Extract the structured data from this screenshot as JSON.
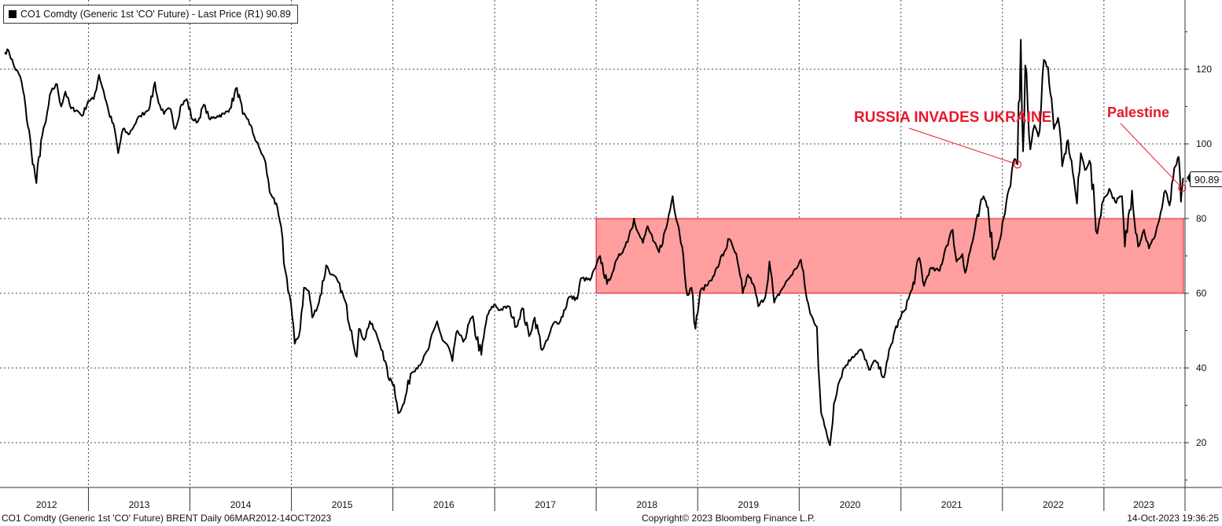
{
  "legend": {
    "text": "CO1 Comdty (Generic 1st 'CO' Future) - Last Price (R1) 90.89"
  },
  "last_price_badge": "90.89",
  "footer": {
    "left": "CO1 Comdty (Generic 1st 'CO' Future) BRENT  Daily 06MAR2012-14OCT2023",
    "center": "Copyright© 2023 Bloomberg Finance L.P.",
    "right": "14-Oct-2023 19:36:25"
  },
  "annotations": [
    {
      "text": "RUSSIA INVADES UKRAINE",
      "date": "2022-02-24",
      "value": 94.5
    },
    {
      "text": "Palestine",
      "date": "2023-10-09",
      "value": 88.2
    }
  ],
  "colors": {
    "line": "#000000",
    "band_fill": "#ff9e9e",
    "band_stroke": "#e01414",
    "annotation": "#e8182a",
    "grid": "#444444"
  },
  "chart_data": {
    "type": "line",
    "title": "",
    "xlabel": "",
    "ylabel": "",
    "x_range": [
      "2012-03-06",
      "2023-10-14"
    ],
    "xticks": [
      "2012",
      "2013",
      "2014",
      "2015",
      "2016",
      "2017",
      "2018",
      "2019",
      "2020",
      "2021",
      "2022",
      "2023"
    ],
    "yticks": [
      20,
      40,
      60,
      80,
      100,
      120
    ],
    "ylim": [
      10,
      138
    ],
    "grid": true,
    "y_axis_side": "right",
    "legend_position": "top-left",
    "highlight_band": {
      "x_start": "2018-01-01",
      "x_end": "2023-10-14",
      "y_low": 60,
      "y_high": 80
    },
    "series": [
      {
        "name": "CO1 Comdty (Generic 1st 'CO' Future) - Last Price",
        "last_value": 90.89,
        "points": [
          [
            "2012-03-06",
            124.5
          ],
          [
            "2012-03-20",
            125.0
          ],
          [
            "2012-04-10",
            120.5
          ],
          [
            "2012-05-01",
            118.0
          ],
          [
            "2012-05-20",
            110.0
          ],
          [
            "2012-06-10",
            98.0
          ],
          [
            "2012-06-28",
            89.5
          ],
          [
            "2012-07-15",
            101.0
          ],
          [
            "2012-08-01",
            106.0
          ],
          [
            "2012-08-20",
            114.0
          ],
          [
            "2012-09-10",
            116.0
          ],
          [
            "2012-09-25",
            110.0
          ],
          [
            "2012-10-10",
            114.0
          ],
          [
            "2012-10-30",
            109.5
          ],
          [
            "2012-11-20",
            109.0
          ],
          [
            "2012-12-10",
            107.5
          ],
          [
            "2012-12-31",
            111.5
          ],
          [
            "2013-01-20",
            112.0
          ],
          [
            "2013-02-08",
            118.5
          ],
          [
            "2013-02-25",
            114.0
          ],
          [
            "2013-03-15",
            108.5
          ],
          [
            "2013-04-05",
            104.0
          ],
          [
            "2013-04-18",
            97.5
          ],
          [
            "2013-05-05",
            104.0
          ],
          [
            "2013-05-25",
            102.5
          ],
          [
            "2013-06-15",
            105.0
          ],
          [
            "2013-07-05",
            107.5
          ],
          [
            "2013-07-25",
            108.5
          ],
          [
            "2013-08-10",
            110.0
          ],
          [
            "2013-08-28",
            116.5
          ],
          [
            "2013-09-10",
            111.0
          ],
          [
            "2013-09-30",
            108.0
          ],
          [
            "2013-10-20",
            109.5
          ],
          [
            "2013-11-10",
            104.0
          ],
          [
            "2013-11-28",
            110.0
          ],
          [
            "2013-12-20",
            112.0
          ],
          [
            "2014-01-10",
            106.5
          ],
          [
            "2014-01-30",
            106.0
          ],
          [
            "2014-02-20",
            110.5
          ],
          [
            "2014-03-15",
            106.5
          ],
          [
            "2014-04-10",
            107.5
          ],
          [
            "2014-05-05",
            108.0
          ],
          [
            "2014-05-25",
            109.5
          ],
          [
            "2014-06-19",
            115.0
          ],
          [
            "2014-07-10",
            108.0
          ],
          [
            "2014-07-30",
            106.5
          ],
          [
            "2014-08-20",
            102.0
          ],
          [
            "2014-09-10",
            98.5
          ],
          [
            "2014-09-30",
            95.0
          ],
          [
            "2014-10-15",
            87.0
          ],
          [
            "2014-10-30",
            85.5
          ],
          [
            "2014-11-20",
            79.5
          ],
          [
            "2014-12-10",
            66.0
          ],
          [
            "2014-12-30",
            57.5
          ],
          [
            "2015-01-13",
            46.5
          ],
          [
            "2015-01-28",
            48.5
          ],
          [
            "2015-02-15",
            61.5
          ],
          [
            "2015-03-05",
            60.5
          ],
          [
            "2015-03-17",
            53.5
          ],
          [
            "2015-04-10",
            57.5
          ],
          [
            "2015-05-06",
            67.5
          ],
          [
            "2015-05-25",
            65.0
          ],
          [
            "2015-06-15",
            63.5
          ],
          [
            "2015-07-10",
            58.5
          ],
          [
            "2015-08-05",
            50.0
          ],
          [
            "2015-08-24",
            43.0
          ],
          [
            "2015-09-01",
            50.5
          ],
          [
            "2015-09-20",
            47.5
          ],
          [
            "2015-10-10",
            52.5
          ],
          [
            "2015-11-05",
            48.5
          ],
          [
            "2015-11-25",
            44.5
          ],
          [
            "2015-12-15",
            37.5
          ],
          [
            "2016-01-05",
            35.5
          ],
          [
            "2016-01-20",
            27.9
          ],
          [
            "2016-02-10",
            30.5
          ],
          [
            "2016-03-05",
            38.5
          ],
          [
            "2016-03-25",
            40.0
          ],
          [
            "2016-04-17",
            42.0
          ],
          [
            "2016-05-10",
            45.5
          ],
          [
            "2016-06-08",
            52.5
          ],
          [
            "2016-06-27",
            47.5
          ],
          [
            "2016-07-20",
            45.5
          ],
          [
            "2016-08-02",
            41.8
          ],
          [
            "2016-08-20",
            50.0
          ],
          [
            "2016-09-10",
            47.0
          ],
          [
            "2016-10-10",
            53.5
          ],
          [
            "2016-11-14",
            43.5
          ],
          [
            "2016-12-05",
            54.0
          ],
          [
            "2016-12-30",
            57.0
          ],
          [
            "2017-01-20",
            55.5
          ],
          [
            "2017-02-20",
            56.5
          ],
          [
            "2017-03-20",
            51.0
          ],
          [
            "2017-04-10",
            56.0
          ],
          [
            "2017-05-05",
            48.5
          ],
          [
            "2017-05-25",
            53.5
          ],
          [
            "2017-06-21",
            44.8
          ],
          [
            "2017-07-10",
            47.5
          ],
          [
            "2017-08-01",
            52.0
          ],
          [
            "2017-08-25",
            52.5
          ],
          [
            "2017-09-25",
            59.0
          ],
          [
            "2017-10-25",
            58.5
          ],
          [
            "2017-11-07",
            64.0
          ],
          [
            "2017-12-10",
            63.5
          ],
          [
            "2017-12-29",
            66.8
          ],
          [
            "2018-01-15",
            70.0
          ],
          [
            "2018-02-09",
            62.5
          ],
          [
            "2018-02-28",
            65.5
          ],
          [
            "2018-03-20",
            69.5
          ],
          [
            "2018-04-15",
            72.5
          ],
          [
            "2018-05-17",
            80.0
          ],
          [
            "2018-05-30",
            76.5
          ],
          [
            "2018-06-18",
            73.5
          ],
          [
            "2018-07-05",
            78.0
          ],
          [
            "2018-07-25",
            74.0
          ],
          [
            "2018-08-15",
            71.0
          ],
          [
            "2018-09-10",
            77.5
          ],
          [
            "2018-10-03",
            86.0
          ],
          [
            "2018-10-25",
            77.5
          ],
          [
            "2018-11-10",
            70.5
          ],
          [
            "2018-11-25",
            59.5
          ],
          [
            "2018-12-10",
            61.5
          ],
          [
            "2018-12-24",
            50.5
          ],
          [
            "2019-01-10",
            60.5
          ],
          [
            "2019-02-01",
            62.0
          ],
          [
            "2019-02-25",
            64.5
          ],
          [
            "2019-03-20",
            68.0
          ],
          [
            "2019-04-25",
            74.5
          ],
          [
            "2019-05-15",
            71.0
          ],
          [
            "2019-06-12",
            60.0
          ],
          [
            "2019-07-01",
            65.0
          ],
          [
            "2019-07-20",
            62.5
          ],
          [
            "2019-08-07",
            56.5
          ],
          [
            "2019-09-01",
            59.0
          ],
          [
            "2019-09-16",
            68.5
          ],
          [
            "2019-10-03",
            57.5
          ],
          [
            "2019-10-30",
            61.0
          ],
          [
            "2019-11-20",
            63.5
          ],
          [
            "2019-12-20",
            66.5
          ],
          [
            "2020-01-07",
            69.0
          ],
          [
            "2020-01-25",
            60.0
          ],
          [
            "2020-02-10",
            54.5
          ],
          [
            "2020-03-05",
            51.0
          ],
          [
            "2020-03-20",
            28.0
          ],
          [
            "2020-04-01",
            24.5
          ],
          [
            "2020-04-21",
            19.3
          ],
          [
            "2020-05-05",
            30.5
          ],
          [
            "2020-05-20",
            35.5
          ],
          [
            "2020-06-10",
            40.0
          ],
          [
            "2020-07-10",
            43.0
          ],
          [
            "2020-08-10",
            45.0
          ],
          [
            "2020-09-08",
            39.5
          ],
          [
            "2020-10-01",
            42.0
          ],
          [
            "2020-11-01",
            37.5
          ],
          [
            "2020-11-15",
            42.5
          ],
          [
            "2020-12-10",
            50.0
          ],
          [
            "2021-01-10",
            55.0
          ],
          [
            "2021-02-10",
            61.0
          ],
          [
            "2021-03-08",
            69.5
          ],
          [
            "2021-03-25",
            62.0
          ],
          [
            "2021-04-15",
            66.5
          ],
          [
            "2021-05-20",
            66.0
          ],
          [
            "2021-06-10",
            72.0
          ],
          [
            "2021-07-06",
            77.0
          ],
          [
            "2021-07-20",
            68.5
          ],
          [
            "2021-08-10",
            70.5
          ],
          [
            "2021-08-20",
            65.5
          ],
          [
            "2021-09-20",
            75.5
          ],
          [
            "2021-10-25",
            86.0
          ],
          [
            "2021-11-10",
            83.0
          ],
          [
            "2021-12-01",
            69.0
          ],
          [
            "2021-12-20",
            73.5
          ],
          [
            "2022-01-05",
            80.0
          ],
          [
            "2022-01-25",
            88.0
          ],
          [
            "2022-02-14",
            96.0
          ],
          [
            "2022-02-24",
            94.5
          ],
          [
            "2022-03-08",
            127.9
          ],
          [
            "2022-03-16",
            98.0
          ],
          [
            "2022-03-24",
            121.0
          ],
          [
            "2022-04-11",
            98.5
          ],
          [
            "2022-04-26",
            105.0
          ],
          [
            "2022-05-10",
            102.0
          ],
          [
            "2022-05-30",
            122.5
          ],
          [
            "2022-06-14",
            120.5
          ],
          [
            "2022-07-05",
            104.0
          ],
          [
            "2022-07-20",
            107.0
          ],
          [
            "2022-08-04",
            94.0
          ],
          [
            "2022-08-25",
            101.0
          ],
          [
            "2022-09-15",
            90.5
          ],
          [
            "2022-09-26",
            84.0
          ],
          [
            "2022-10-10",
            97.5
          ],
          [
            "2022-10-25",
            93.0
          ],
          [
            "2022-11-10",
            95.5
          ],
          [
            "2022-12-08",
            76.0
          ],
          [
            "2022-12-25",
            84.0
          ],
          [
            "2023-01-20",
            88.0
          ],
          [
            "2023-02-10",
            84.5
          ],
          [
            "2023-03-07",
            86.0
          ],
          [
            "2023-03-17",
            72.5
          ],
          [
            "2023-04-12",
            87.5
          ],
          [
            "2023-05-04",
            72.5
          ],
          [
            "2023-05-25",
            77.0
          ],
          [
            "2023-06-12",
            72.0
          ],
          [
            "2023-06-28",
            74.5
          ],
          [
            "2023-07-20",
            80.0
          ],
          [
            "2023-08-10",
            87.5
          ],
          [
            "2023-08-25",
            83.5
          ],
          [
            "2023-09-15",
            94.0
          ],
          [
            "2023-09-27",
            96.5
          ],
          [
            "2023-10-05",
            84.5
          ],
          [
            "2023-10-09",
            88.2
          ],
          [
            "2023-10-13",
            90.89
          ]
        ]
      }
    ]
  }
}
